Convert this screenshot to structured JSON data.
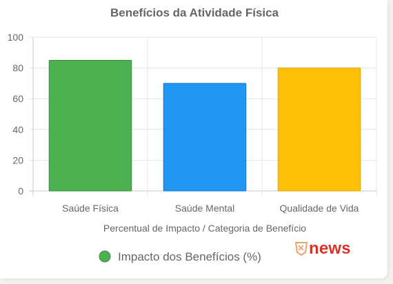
{
  "chart_data": {
    "type": "bar",
    "title": "Benefícios da Atividade Física",
    "categories": [
      "Saúde Física",
      "Saúde Mental",
      "Qualidade de Vida"
    ],
    "series": [
      {
        "name": "Impacto dos Benefícios (%)",
        "values": [
          85,
          70,
          80
        ]
      }
    ],
    "bar_colors": [
      "#4caf50",
      "#2196f3",
      "#ffc107"
    ],
    "bar_border_colors": [
      "#3d8b40",
      "#1976d2",
      "#e0a800"
    ],
    "legend_color": "#4caf50",
    "xlabel": "Percentual de Impacto / Categoria de Benefício",
    "ylabel": "",
    "ylim": [
      0,
      100
    ],
    "yticks": [
      "0",
      "20",
      "40",
      "60",
      "80",
      "100"
    ],
    "grid": true,
    "legend_position": "bottom"
  },
  "watermark": {
    "text": "news",
    "icon": "shield-logo-icon",
    "color": "#d8352a"
  }
}
